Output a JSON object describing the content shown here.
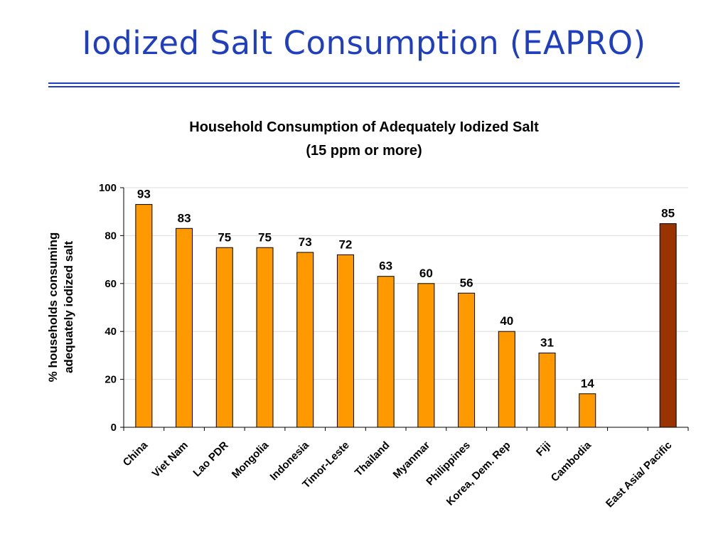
{
  "slide": {
    "title": "Iodized Salt Consumption (EAPRO)"
  },
  "chart_data": {
    "type": "bar",
    "title": "Household Consumption of Adequately Iodized Salt",
    "subtitle": "(15 ppm or more)",
    "ylabel_lines": [
      "% households consuming",
      "adequately iodized salt"
    ],
    "xlabel": "",
    "ylim": [
      0,
      100
    ],
    "yticks": [
      0,
      20,
      40,
      60,
      80,
      100
    ],
    "grid": true,
    "categories": [
      "China",
      "Viet Nam",
      "Lao PDR",
      "Mongolia",
      "Indonesia",
      "Timor-Leste",
      "Thailand",
      "Myanmar",
      "Philippines",
      "Korea, Dem. Rep",
      "Fiji",
      "Cambodia",
      "",
      "East Asia/ Pacific"
    ],
    "values": [
      93,
      83,
      75,
      75,
      73,
      72,
      63,
      60,
      56,
      40,
      31,
      14,
      null,
      85
    ],
    "colors": {
      "country_bar": "#ff9900",
      "region_bar": "#993300",
      "bar_outline": "#000000",
      "gridline": "#dddddd"
    },
    "highlight_category": "East Asia/ Pacific"
  }
}
